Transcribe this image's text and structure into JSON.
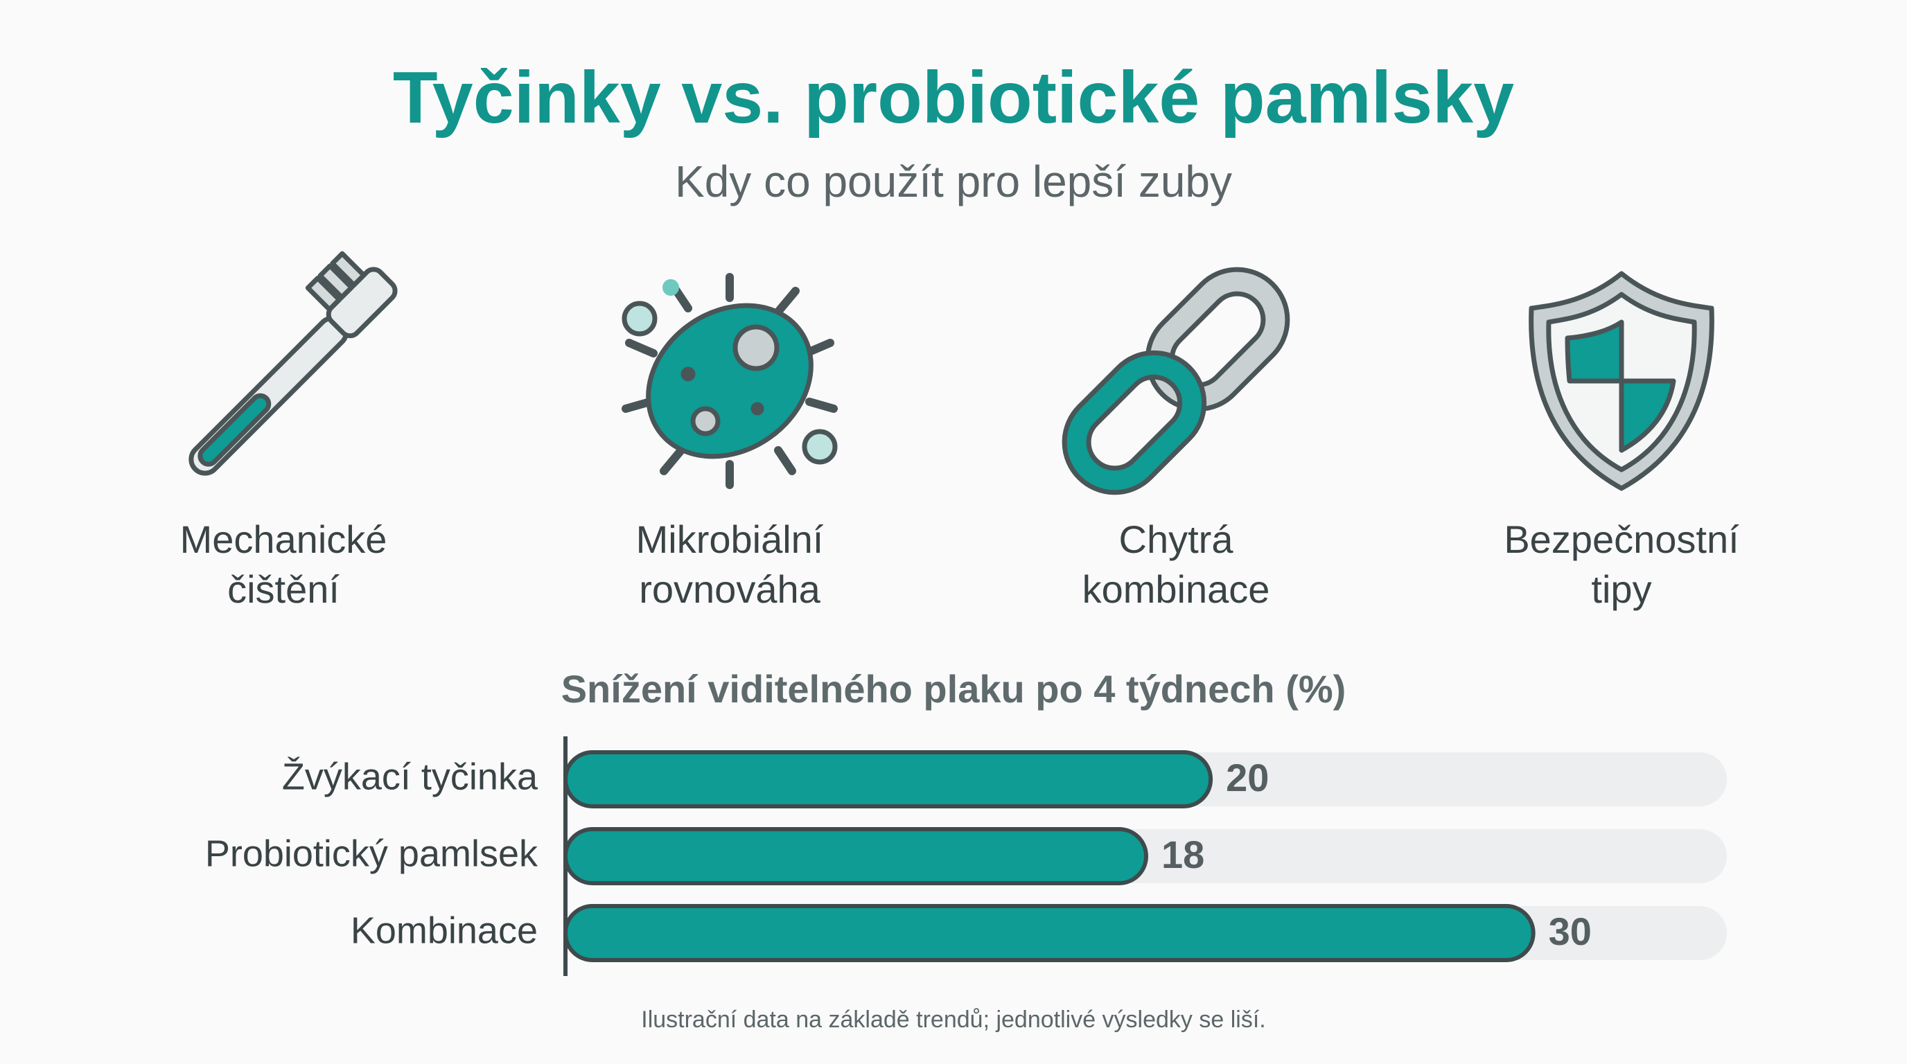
{
  "title": "Tyčinky vs. probiotické pamlsky",
  "subtitle": "Kdy co použít pro lepší zuby",
  "features": [
    {
      "lines": [
        "Mechanické",
        "čištění"
      ]
    },
    {
      "lines": [
        "Mikrobiální",
        "rovnováha"
      ]
    },
    {
      "lines": [
        "Chytrá",
        "kombinace"
      ]
    },
    {
      "lines": [
        "Bezpečnostní",
        "tipy"
      ]
    }
  ],
  "chart_data": {
    "type": "bar",
    "orientation": "horizontal",
    "title": "Snížení viditelného plaku po 4 týdnech (%)",
    "categories": [
      "Žvýkací tyčinka",
      "Probiotický pamlsek",
      "Kombinace"
    ],
    "values": [
      20,
      18,
      30
    ],
    "color": "#0e9c94",
    "xlim": [
      0,
      36
    ]
  },
  "footnote": "Ilustrační data na základě trendů; jednotlivé výsledky se liší."
}
